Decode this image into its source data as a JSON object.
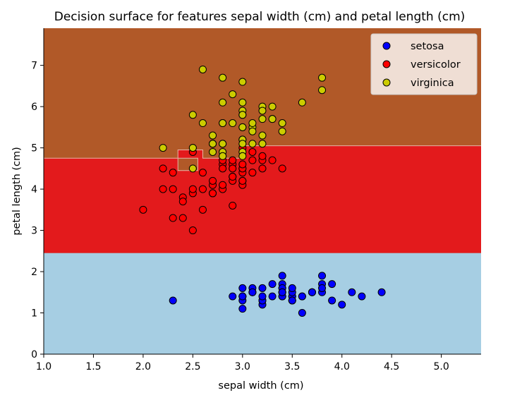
{
  "chart_data": {
    "type": "scatter",
    "title": "Decision surface for features sepal width (cm) and petal length (cm)",
    "xlabel": "sepal width (cm)",
    "ylabel": "petal length (cm)",
    "xlim": [
      1.0,
      5.4
    ],
    "ylim": [
      0,
      7.9
    ],
    "xticks": [
      "1.0",
      "1.5",
      "2.0",
      "2.5",
      "3.0",
      "3.5",
      "4.0",
      "4.5",
      "5.0"
    ],
    "yticks": [
      "0",
      "1",
      "2",
      "3",
      "4",
      "5",
      "6",
      "7"
    ],
    "grid": false,
    "legend_position": "top-right",
    "regions": {
      "setosa_color": "#a6cee3",
      "versicolor_color": "#e31a1c",
      "virginica_color": "#b15928",
      "setosa_upper": 2.45,
      "versicolor_boundary": [
        [
          1.0,
          4.75
        ],
        [
          2.35,
          4.75
        ],
        [
          2.35,
          4.95
        ],
        [
          2.6,
          4.95
        ],
        [
          2.6,
          4.75
        ],
        [
          3.0,
          4.75
        ],
        [
          3.0,
          5.05
        ],
        [
          5.4,
          5.05
        ]
      ],
      "notch": [
        [
          2.35,
          4.45
        ],
        [
          2.55,
          4.45
        ],
        [
          2.55,
          4.75
        ],
        [
          2.35,
          4.75
        ]
      ]
    },
    "series": [
      {
        "name": "setosa",
        "color": "#0000ff",
        "points": [
          [
            3.5,
            1.4
          ],
          [
            3.0,
            1.4
          ],
          [
            3.2,
            1.3
          ],
          [
            3.1,
            1.5
          ],
          [
            3.6,
            1.4
          ],
          [
            3.9,
            1.7
          ],
          [
            3.4,
            1.4
          ],
          [
            3.4,
            1.5
          ],
          [
            2.9,
            1.4
          ],
          [
            3.1,
            1.5
          ],
          [
            3.7,
            1.5
          ],
          [
            3.4,
            1.6
          ],
          [
            3.0,
            1.4
          ],
          [
            3.0,
            1.1
          ],
          [
            4.0,
            1.2
          ],
          [
            4.4,
            1.5
          ],
          [
            3.9,
            1.3
          ],
          [
            3.5,
            1.4
          ],
          [
            3.8,
            1.7
          ],
          [
            3.8,
            1.5
          ],
          [
            3.4,
            1.7
          ],
          [
            3.7,
            1.5
          ],
          [
            3.6,
            1.0
          ],
          [
            3.3,
            1.7
          ],
          [
            3.4,
            1.9
          ],
          [
            3.0,
            1.6
          ],
          [
            3.4,
            1.6
          ],
          [
            3.5,
            1.5
          ],
          [
            3.4,
            1.4
          ],
          [
            3.2,
            1.6
          ],
          [
            3.1,
            1.6
          ],
          [
            3.4,
            1.5
          ],
          [
            4.1,
            1.5
          ],
          [
            4.2,
            1.4
          ],
          [
            3.1,
            1.5
          ],
          [
            3.2,
            1.2
          ],
          [
            3.5,
            1.3
          ],
          [
            3.6,
            1.4
          ],
          [
            3.0,
            1.3
          ],
          [
            3.4,
            1.5
          ],
          [
            3.5,
            1.3
          ],
          [
            2.3,
            1.3
          ],
          [
            3.2,
            1.3
          ],
          [
            3.5,
            1.6
          ],
          [
            3.8,
            1.9
          ],
          [
            3.0,
            1.4
          ],
          [
            3.8,
            1.6
          ],
          [
            3.2,
            1.4
          ],
          [
            3.7,
            1.5
          ],
          [
            3.3,
            1.4
          ]
        ]
      },
      {
        "name": "versicolor",
        "color": "#ff0000",
        "points": [
          [
            3.2,
            4.7
          ],
          [
            3.2,
            4.5
          ],
          [
            3.1,
            4.9
          ],
          [
            2.3,
            4.0
          ],
          [
            2.8,
            4.6
          ],
          [
            2.8,
            4.5
          ],
          [
            3.3,
            4.7
          ],
          [
            2.4,
            3.3
          ],
          [
            2.9,
            4.6
          ],
          [
            2.7,
            3.9
          ],
          [
            2.0,
            3.5
          ],
          [
            3.0,
            4.2
          ],
          [
            2.2,
            4.0
          ],
          [
            2.9,
            4.7
          ],
          [
            2.9,
            3.6
          ],
          [
            3.1,
            4.4
          ],
          [
            3.0,
            4.5
          ],
          [
            2.7,
            4.1
          ],
          [
            2.2,
            4.5
          ],
          [
            2.5,
            3.9
          ],
          [
            3.2,
            4.8
          ],
          [
            2.8,
            4.0
          ],
          [
            2.5,
            4.9
          ],
          [
            2.8,
            4.7
          ],
          [
            2.9,
            4.3
          ],
          [
            3.0,
            4.4
          ],
          [
            2.8,
            4.8
          ],
          [
            3.0,
            5.0
          ],
          [
            2.9,
            4.5
          ],
          [
            2.6,
            3.5
          ],
          [
            2.4,
            3.8
          ],
          [
            2.4,
            3.7
          ],
          [
            2.7,
            3.9
          ],
          [
            2.7,
            5.1
          ],
          [
            3.0,
            4.5
          ],
          [
            3.4,
            4.5
          ],
          [
            3.1,
            4.7
          ],
          [
            2.3,
            4.4
          ],
          [
            3.0,
            4.1
          ],
          [
            2.5,
            4.0
          ],
          [
            2.6,
            4.4
          ],
          [
            3.0,
            4.6
          ],
          [
            2.6,
            4.0
          ],
          [
            2.3,
            3.3
          ],
          [
            2.7,
            4.2
          ],
          [
            3.0,
            4.2
          ],
          [
            2.9,
            4.2
          ],
          [
            2.9,
            4.3
          ],
          [
            2.5,
            3.0
          ],
          [
            2.8,
            4.1
          ]
        ]
      },
      {
        "name": "virginica",
        "color": "#cccc00",
        "points": [
          [
            3.3,
            6.0
          ],
          [
            2.7,
            5.1
          ],
          [
            3.0,
            5.9
          ],
          [
            2.9,
            5.6
          ],
          [
            3.0,
            5.8
          ],
          [
            3.0,
            6.6
          ],
          [
            2.5,
            4.5
          ],
          [
            2.9,
            6.3
          ],
          [
            2.5,
            5.8
          ],
          [
            3.6,
            6.1
          ],
          [
            3.2,
            5.1
          ],
          [
            2.7,
            5.3
          ],
          [
            3.0,
            5.5
          ],
          [
            2.5,
            5.0
          ],
          [
            2.8,
            5.1
          ],
          [
            3.2,
            5.3
          ],
          [
            3.0,
            5.5
          ],
          [
            3.8,
            6.7
          ],
          [
            2.6,
            6.9
          ],
          [
            2.2,
            5.0
          ],
          [
            3.2,
            5.7
          ],
          [
            2.8,
            4.9
          ],
          [
            2.8,
            6.7
          ],
          [
            2.7,
            4.9
          ],
          [
            3.3,
            5.7
          ],
          [
            3.2,
            6.0
          ],
          [
            2.8,
            4.8
          ],
          [
            3.0,
            4.9
          ],
          [
            2.8,
            5.6
          ],
          [
            3.0,
            5.8
          ],
          [
            2.8,
            6.1
          ],
          [
            3.8,
            6.4
          ],
          [
            2.8,
            5.6
          ],
          [
            2.8,
            5.1
          ],
          [
            2.6,
            5.6
          ],
          [
            3.0,
            6.1
          ],
          [
            3.4,
            5.6
          ],
          [
            3.1,
            5.5
          ],
          [
            3.0,
            4.8
          ],
          [
            3.1,
            5.4
          ],
          [
            3.1,
            5.6
          ],
          [
            3.1,
            5.1
          ],
          [
            2.7,
            5.1
          ],
          [
            3.2,
            5.9
          ],
          [
            3.3,
            5.7
          ],
          [
            3.0,
            5.2
          ],
          [
            2.5,
            5.0
          ],
          [
            3.0,
            5.2
          ],
          [
            3.4,
            5.4
          ],
          [
            3.0,
            5.1
          ]
        ]
      }
    ]
  }
}
